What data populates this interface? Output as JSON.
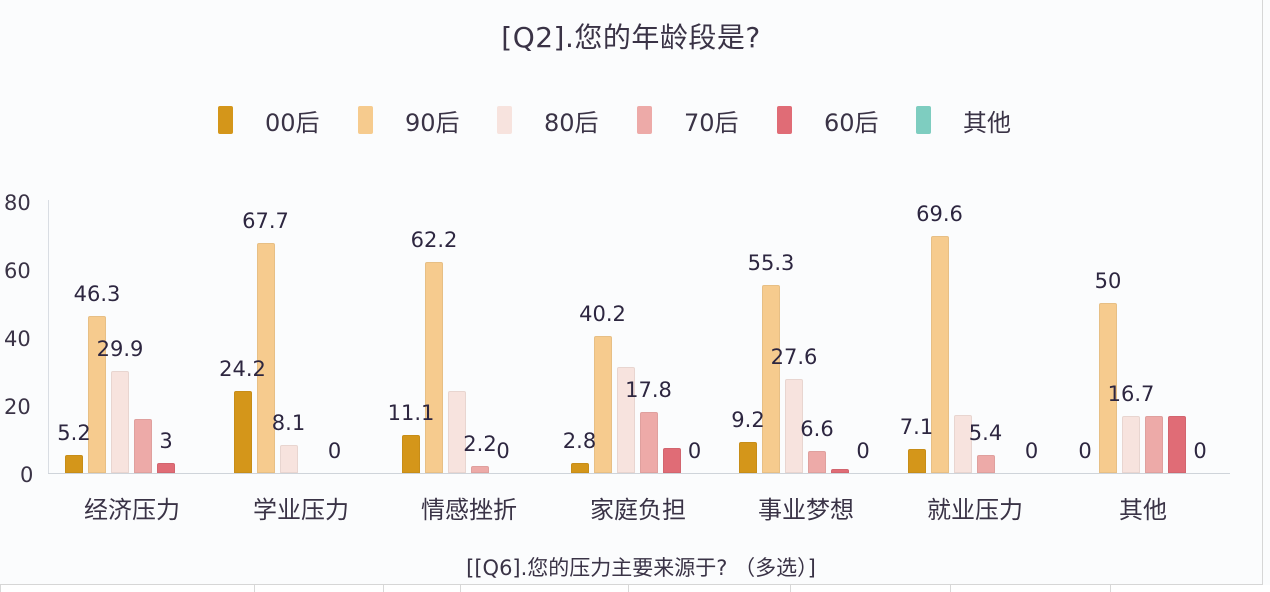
{
  "chart_data": {
    "type": "bar",
    "title": "[Q2].您的年龄段是?",
    "xlabel": "[[Q6].您的压力主要来源于? （多选）]",
    "ylabel": "",
    "ylim": [
      0,
      80
    ],
    "yticks": [
      0,
      20,
      40,
      60,
      80
    ],
    "grid": false,
    "legend_position": "top",
    "categories": [
      "经济压力",
      "学业压力",
      "情感挫折",
      "家庭负担",
      "事业梦想",
      "就业压力",
      "其他"
    ],
    "series": [
      {
        "name": "00后",
        "color": "#D4961A",
        "values": [
          5.2,
          24.2,
          11.1,
          2.8,
          9.2,
          7.1,
          0
        ]
      },
      {
        "name": "90后",
        "color": "#F6CB8E",
        "values": [
          46.3,
          67.7,
          62.2,
          40.2,
          55.3,
          69.6,
          50
        ]
      },
      {
        "name": "80后",
        "color": "#F7E3DE",
        "values": [
          29.9,
          8.1,
          24.0,
          31.2,
          27.6,
          17.0,
          16.7
        ]
      },
      {
        "name": "70后",
        "color": "#EDAAA8",
        "values": [
          16.0,
          0,
          2.2,
          17.8,
          6.6,
          5.4,
          16.7
        ]
      },
      {
        "name": "60后",
        "color": "#E06C76",
        "values": [
          3,
          0,
          0,
          7.4,
          1.3,
          0,
          16.7
        ]
      },
      {
        "name": "其他",
        "color": "#7ECDC0",
        "values": [
          0,
          0,
          0,
          0,
          0,
          0,
          0
        ]
      }
    ],
    "data_labels": [
      {
        "category": "经济压力",
        "series": "00后",
        "text": "5.2"
      },
      {
        "category": "经济压力",
        "series": "90后",
        "text": "46.3"
      },
      {
        "category": "经济压力",
        "series": "80后",
        "text": "29.9"
      },
      {
        "category": "经济压力",
        "series": "60后",
        "text": "3"
      },
      {
        "category": "学业压力",
        "series": "00后",
        "text": "24.2"
      },
      {
        "category": "学业压力",
        "series": "90后",
        "text": "67.7"
      },
      {
        "category": "学业压力",
        "series": "80后",
        "text": "8.1"
      },
      {
        "category": "学业压力",
        "series": "60后",
        "text": "0"
      },
      {
        "category": "情感挫折",
        "series": "00后",
        "text": "11.1"
      },
      {
        "category": "情感挫折",
        "series": "90后",
        "text": "62.2"
      },
      {
        "category": "情感挫折",
        "series": "70后",
        "text": "2.2"
      },
      {
        "category": "情感挫折",
        "series": "60后",
        "text": "0"
      },
      {
        "category": "家庭负担",
        "series": "00后",
        "text": "2.8"
      },
      {
        "category": "家庭负担",
        "series": "90后",
        "text": "40.2"
      },
      {
        "category": "家庭负担",
        "series": "70后",
        "text": "17.8"
      },
      {
        "category": "家庭负担",
        "series": "其他",
        "text": "0"
      },
      {
        "category": "事业梦想",
        "series": "00后",
        "text": "9.2"
      },
      {
        "category": "事业梦想",
        "series": "90后",
        "text": "55.3"
      },
      {
        "category": "事业梦想",
        "series": "80后",
        "text": "27.6"
      },
      {
        "category": "事业梦想",
        "series": "70后",
        "text": "6.6"
      },
      {
        "category": "事业梦想",
        "series": "其他",
        "text": "0"
      },
      {
        "category": "就业压力",
        "series": "00后",
        "text": "7.1"
      },
      {
        "category": "就业压力",
        "series": "90后",
        "text": "69.6"
      },
      {
        "category": "就业压力",
        "series": "70后",
        "text": "5.4"
      },
      {
        "category": "就业压力",
        "series": "其他",
        "text": "0"
      },
      {
        "category": "其他",
        "series": "00后",
        "text": "0"
      },
      {
        "category": "其他",
        "series": "90后",
        "text": "50"
      },
      {
        "category": "其他",
        "series": "80后",
        "text": "16.7"
      },
      {
        "category": "其他",
        "series": "其他",
        "text": "0"
      }
    ]
  },
  "chart": {
    "title": "[Q2].您的年龄段是?",
    "x_title": "[[Q6].您的压力主要来源于? （多选）]",
    "y_ticks": [
      "80",
      "60",
      "40",
      "20",
      "0"
    ],
    "legend": [
      {
        "label": "00后",
        "color": "#D4961A"
      },
      {
        "label": "90后",
        "color": "#F6CB8E"
      },
      {
        "label": "80后",
        "color": "#F7E3DE"
      },
      {
        "label": "70后",
        "color": "#EDAAA8"
      },
      {
        "label": "60后",
        "color": "#E06C76"
      },
      {
        "label": "其他",
        "color": "#7ECDC0"
      }
    ],
    "categories": [
      "经济压力",
      "学业压力",
      "情感挫折",
      "家庭负担",
      "事业梦想",
      "就业压力",
      "其他"
    ]
  }
}
